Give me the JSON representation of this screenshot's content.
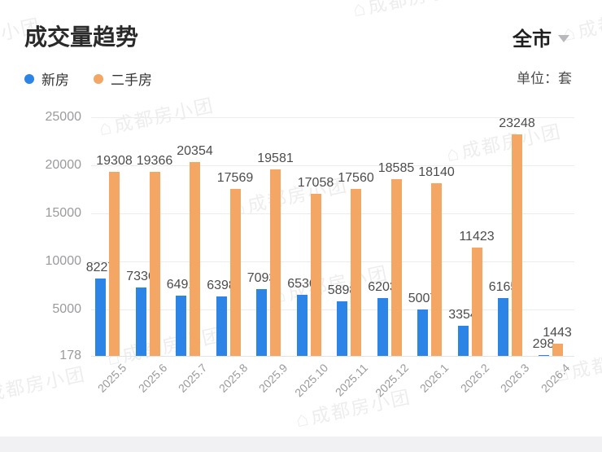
{
  "header": {
    "title": "成交量趋势",
    "region_selector": "全市",
    "unit_label": "单位：套"
  },
  "legend": [
    {
      "label": "新房",
      "color": "#2B84E6"
    },
    {
      "label": "二手房",
      "color": "#F4A664"
    }
  ],
  "watermark": {
    "text": "成都房小团",
    "icon": "house-logo-icon"
  },
  "chart_data": {
    "type": "bar",
    "title": "成交量趋势",
    "xlabel": "",
    "ylabel": "套",
    "categories": [
      "2025.5",
      "2025.6",
      "2025.7",
      "2025.8",
      "2025.9",
      "2025.10",
      "2025.11",
      "2025.12",
      "2026.1",
      "2026.2",
      "2026.3",
      "2026.4"
    ],
    "series": [
      {
        "name": "新房",
        "color": "#2B84E6",
        "values": [
          8227,
          7336,
          6491,
          6398,
          7093,
          6536,
          5898,
          6203,
          5007,
          3354,
          6165,
          298
        ]
      },
      {
        "name": "二手房",
        "color": "#F4A664",
        "values": [
          19308,
          19366,
          20354,
          17569,
          19581,
          17058,
          17560,
          18585,
          18140,
          11423,
          23248,
          1443
        ]
      }
    ],
    "y_ticks": [
      178,
      5000,
      10000,
      15000,
      20000,
      25000
    ],
    "y_min": 178,
    "y_max": 25000,
    "grid": true,
    "data_labels": true,
    "legend_position": "top-left"
  }
}
